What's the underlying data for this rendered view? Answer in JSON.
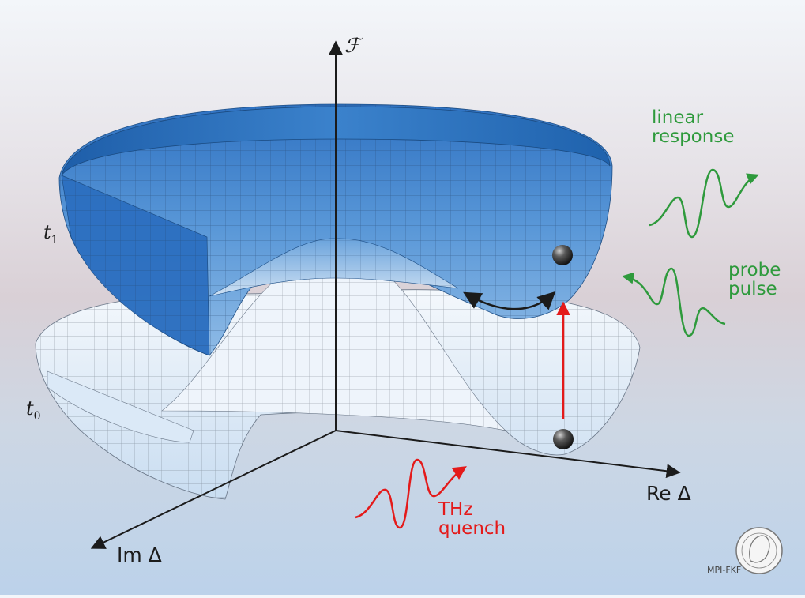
{
  "axes": {
    "vertical": "ℱ",
    "horizontal": "Re Δ",
    "depth": "Im Δ"
  },
  "surfaces": [
    {
      "name": "t",
      "subscript": "1",
      "role": "upper surface (blue)",
      "color": "#2c6fc0"
    },
    {
      "name": "t",
      "subscript": "0",
      "role": "lower surface (pale)",
      "color": "#dbe9f7"
    }
  ],
  "annotations": {
    "linear_response": [
      "linear",
      "response"
    ],
    "probe_pulse": [
      "probe",
      "pulse"
    ],
    "thz_quench": [
      "THz",
      "quench"
    ]
  },
  "colors": {
    "annotation_green": "#2e9a3c",
    "annotation_red": "#e41a1a",
    "axis": "#1b1b1b",
    "ball": "#3a3a3a"
  },
  "logo": {
    "text": "MPI-FKF"
  }
}
